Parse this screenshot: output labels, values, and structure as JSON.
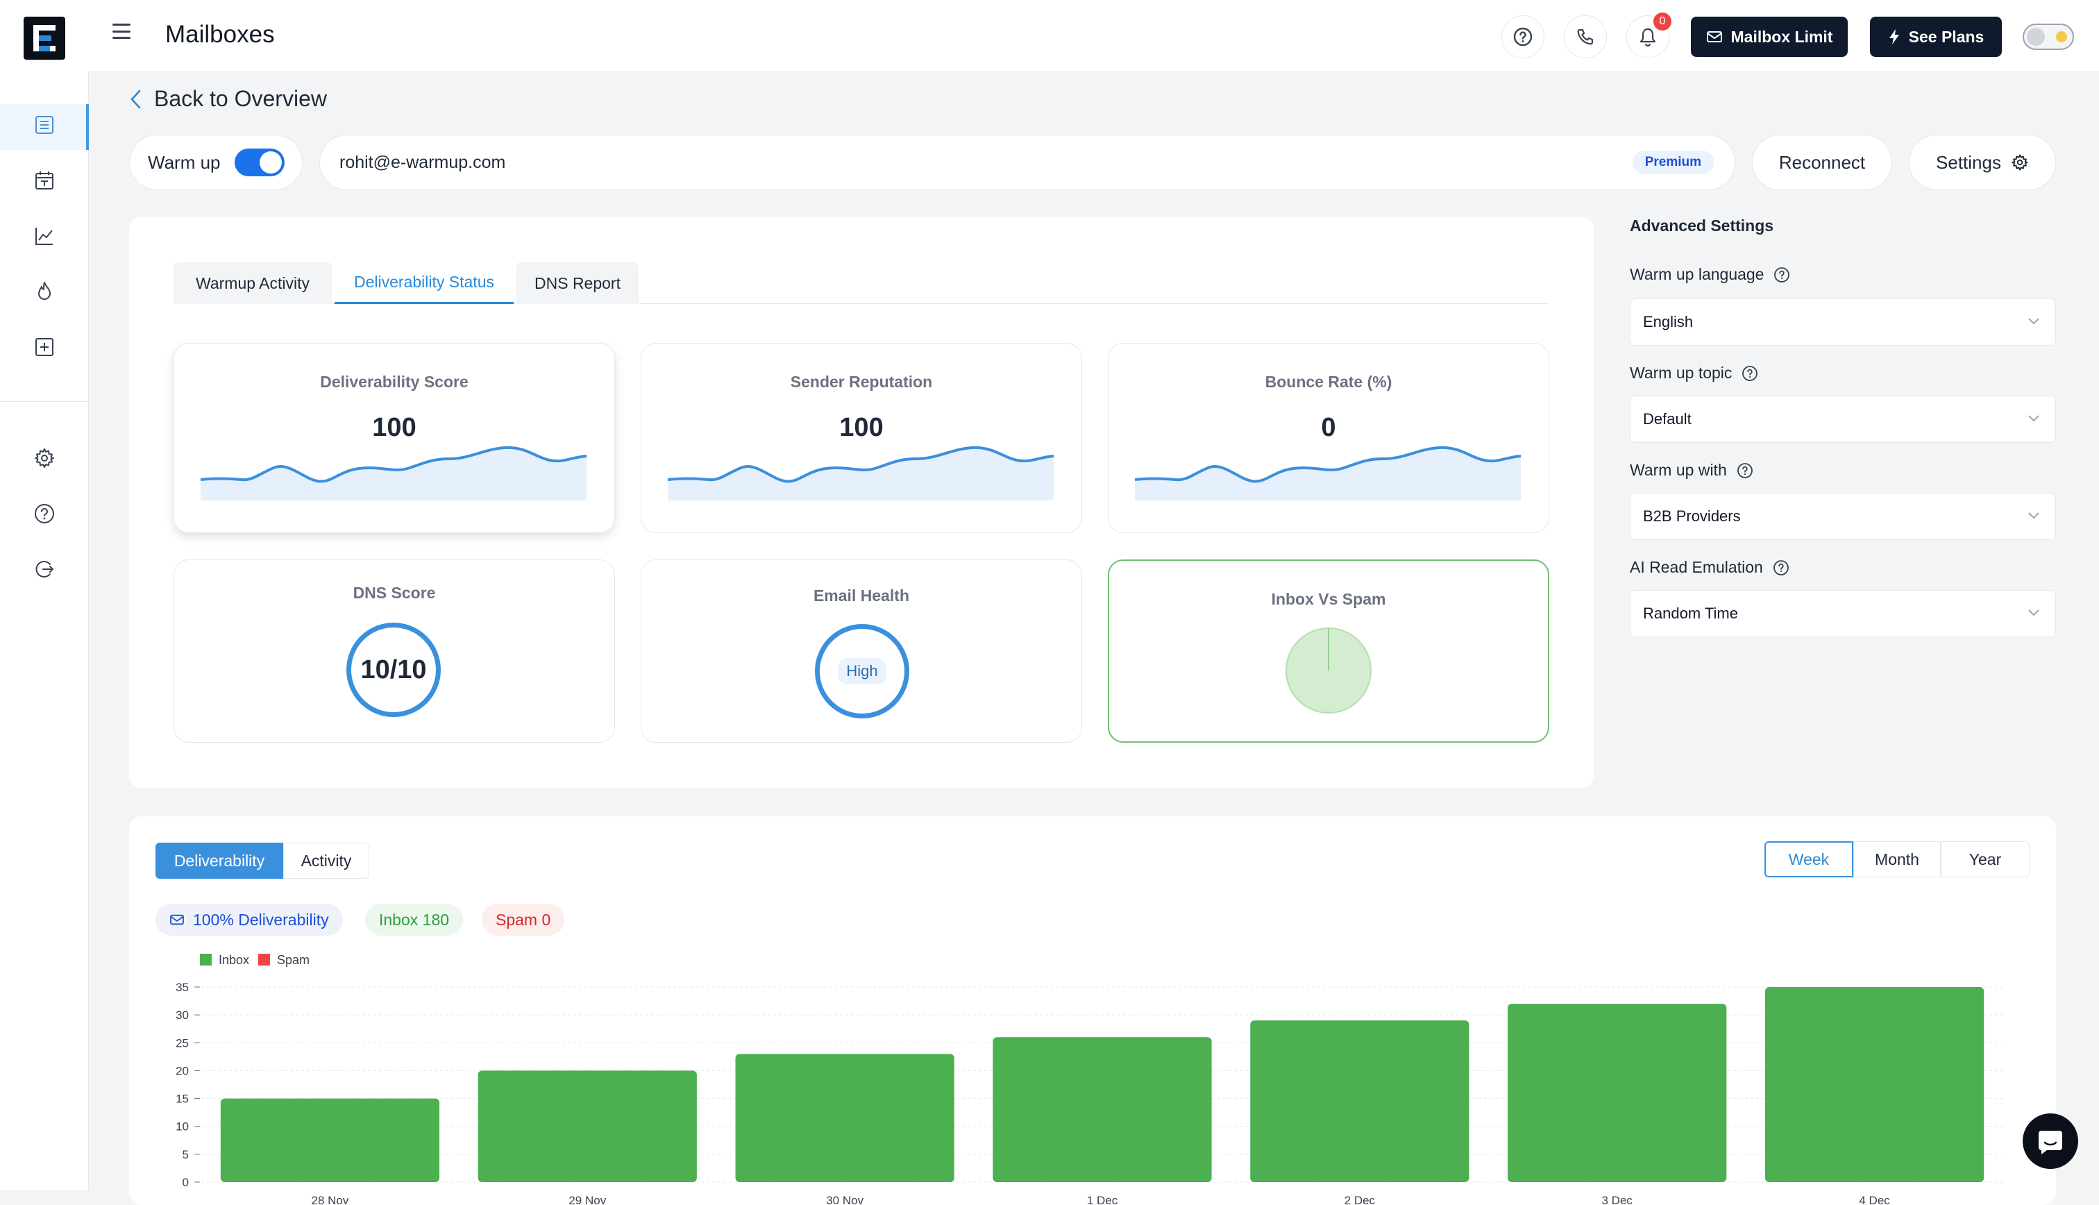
{
  "header": {
    "title": "Mailboxes",
    "notification_count": "0",
    "mailbox_limit_label": "Mailbox Limit",
    "see_plans_label": "See Plans"
  },
  "sidebar": {
    "items": [
      "list-icon",
      "calendar-icon",
      "analytics-icon",
      "flame-icon",
      "add-box-icon",
      "settings-icon",
      "help-icon",
      "logout-icon"
    ]
  },
  "back_label": "Back to Overview",
  "mailbox": {
    "warmup_label": "Warm up",
    "warmup_on": true,
    "email": "rohit@e-warmup.com",
    "plan_badge": "Premium",
    "reconnect_label": "Reconnect",
    "settings_label": "Settings"
  },
  "tabs": [
    "Warmup Activity",
    "Deliverability Status",
    "DNS Report"
  ],
  "active_tab": "Deliverability Status",
  "metrics": {
    "deliverability_score": {
      "title": "Deliverability Score",
      "value": "100"
    },
    "sender_reputation": {
      "title": "Sender Reputation",
      "value": "100"
    },
    "bounce_rate": {
      "title": "Bounce Rate (%)",
      "value": "0"
    },
    "dns_score": {
      "title": "DNS Score",
      "value": "10/10"
    },
    "email_health": {
      "title": "Email Health",
      "value": "High"
    },
    "inbox_vs_spam": {
      "title": "Inbox Vs Spam"
    }
  },
  "advanced": {
    "heading": "Advanced Settings",
    "language_label": "Warm up language",
    "language_value": "English",
    "topic_label": "Warm up topic",
    "topic_value": "Default",
    "with_label": "Warm up with",
    "with_value": "B2B Providers",
    "ai_label": "AI Read Emulation",
    "ai_value": "Random Time"
  },
  "chart_panel": {
    "view_tabs": [
      "Deliverability",
      "Activity"
    ],
    "active_view": "Deliverability",
    "periods": [
      "Week",
      "Month",
      "Year"
    ],
    "active_period": "Week",
    "chips": {
      "deliverability": "100% Deliverability",
      "inbox": "Inbox 180",
      "spam": "Spam 0"
    }
  },
  "colors": {
    "accent": "#2b8ad6",
    "inbox": "#4caf50",
    "spam": "#ef4444",
    "dark": "#0f1b2d"
  },
  "chart_data": {
    "type": "bar",
    "title": "",
    "xlabel": "",
    "ylabel": "",
    "categories": [
      "28 Nov",
      "29 Nov",
      "30 Nov",
      "1 Dec",
      "2 Dec",
      "3 Dec",
      "4 Dec"
    ],
    "series": [
      {
        "name": "Inbox",
        "values": [
          15,
          20,
          23,
          26,
          29,
          32,
          35
        ]
      },
      {
        "name": "Spam",
        "values": [
          0,
          0,
          0,
          0,
          0,
          0,
          0
        ]
      }
    ],
    "yticks": [
      "0",
      "5",
      "10",
      "15",
      "20",
      "25",
      "30",
      "35"
    ],
    "ylim": [
      0,
      35
    ],
    "legend": [
      "Inbox",
      "Spam"
    ],
    "legend_position": "top-left",
    "grid": true
  }
}
